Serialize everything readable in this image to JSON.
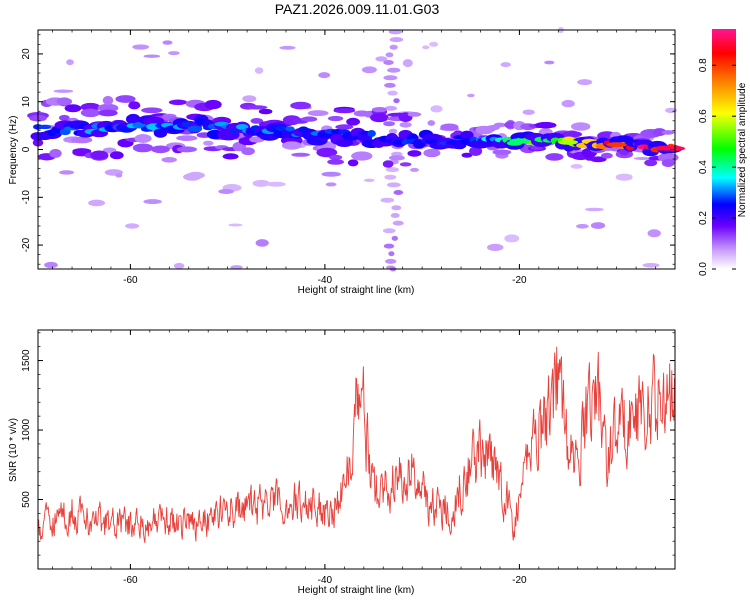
{
  "title": "PAZ1.2026.009.11.01.G03",
  "chart_data": [
    {
      "type": "heatmap",
      "name": "spectrogram",
      "xlabel": "Height of straight line (km)",
      "ylabel": "Frequency (Hz)",
      "xlim": [
        -69.5,
        -4.0
      ],
      "ylim": [
        -25,
        25
      ],
      "xticks": [
        -60,
        -40,
        -20
      ],
      "yticks": [
        20,
        10,
        0,
        -10,
        -20
      ],
      "ridge": {
        "x": [
          -69,
          -65,
          -60,
          -55,
          -50,
          -45,
          -40,
          -35,
          -30,
          -25,
          -20,
          -15,
          -10,
          -5,
          -4
        ],
        "freq": [
          4.0,
          4.3,
          4.8,
          5.0,
          4.6,
          3.8,
          3.0,
          2.6,
          2.2,
          2.0,
          1.8,
          1.5,
          1.0,
          0.3,
          0.2
        ],
        "amplitude": [
          0.28,
          0.3,
          0.32,
          0.3,
          0.32,
          0.3,
          0.28,
          0.26,
          0.26,
          0.3,
          0.45,
          0.6,
          0.85,
          0.95,
          0.95
        ]
      },
      "colorbar": {
        "label": "Normalized spectral amplitude",
        "range": [
          0.0,
          0.9
        ],
        "ticks": [
          "0.0",
          "0.2",
          "0.4",
          "0.6",
          "0.8"
        ]
      }
    },
    {
      "type": "line",
      "name": "snr",
      "xlabel": "Height of straight line (km)",
      "ylabel": "SNR (10 * v/v)",
      "xlim": [
        -69.5,
        -4.0
      ],
      "ylim": [
        0,
        1720
      ],
      "xticks": [
        -60,
        -40,
        -20
      ],
      "yticks": [
        500,
        1000,
        1500
      ],
      "color": "#e8403a",
      "series": [
        {
          "name": "SNR",
          "x": [
            -69.5,
            -68,
            -66,
            -64,
            -62,
            -60,
            -58,
            -56,
            -54,
            -52,
            -50,
            -48,
            -46,
            -44,
            -42,
            -40,
            -38,
            -36.5,
            -35,
            -33,
            -31,
            -29,
            -27,
            -25.5,
            -24,
            -22,
            -20.5,
            -19,
            -17,
            -16,
            -15,
            -14,
            -13,
            -12,
            -11,
            -10,
            -9,
            -8,
            -7,
            -6,
            -5,
            -4
          ],
          "y": [
            300,
            380,
            400,
            350,
            330,
            320,
            330,
            340,
            330,
            370,
            420,
            430,
            480,
            460,
            480,
            420,
            540,
            1400,
            550,
            610,
            700,
            450,
            430,
            700,
            850,
            650,
            300,
            900,
            1150,
            1450,
            850,
            700,
            1200,
            1300,
            800,
            1000,
            1050,
            1100,
            1150,
            1200,
            1250,
            1150
          ]
        }
      ]
    }
  ]
}
